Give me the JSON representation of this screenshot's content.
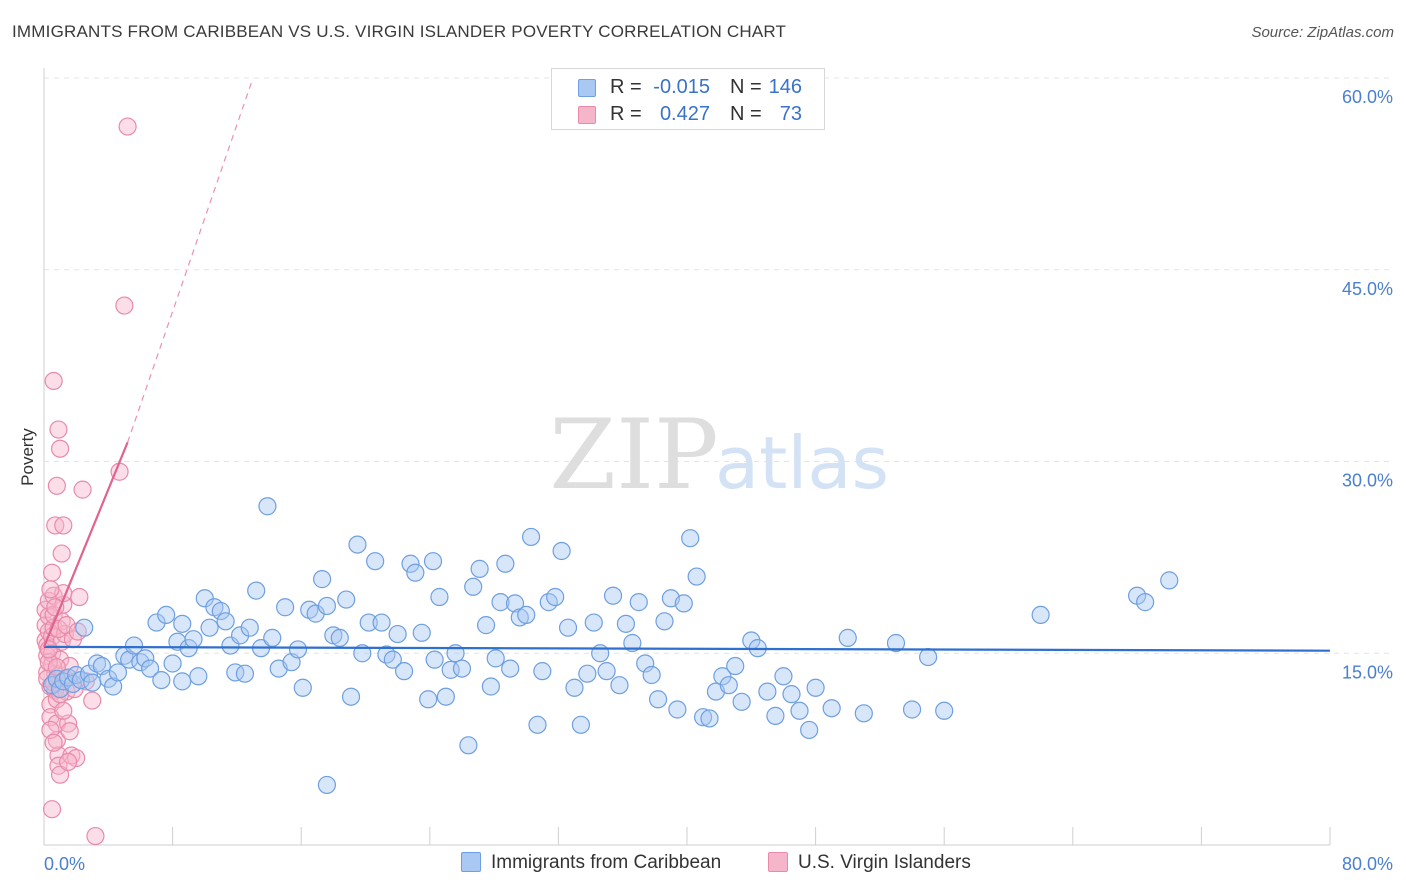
{
  "title": "IMMIGRANTS FROM CARIBBEAN VS U.S. VIRGIN ISLANDER POVERTY CORRELATION CHART",
  "source": "Source: ZipAtlas.com",
  "watermark": {
    "zip": "ZIP",
    "atlas": "atlas"
  },
  "colors": {
    "blue_fill": "#a9c8f2",
    "blue_stroke": "#6e9fe0",
    "blue_line": "#2e6fcf",
    "pink_fill": "#f6b6ca",
    "pink_stroke": "#e98aab",
    "pink_line": "#e0648f",
    "grid": "#e4e4e4",
    "tick_text": "#4a7fd0"
  },
  "legend": {
    "rows": [
      {
        "r_label": "R =",
        "r_value": "-0.015",
        "n_label": "N =",
        "n_value": "146",
        "series": "blue"
      },
      {
        "r_label": "R =",
        "r_value": "0.427",
        "n_label": "N =",
        "n_value": "73",
        "series": "pink"
      }
    ]
  },
  "bottom_legend": [
    {
      "label": "Immigrants from Caribbean",
      "series": "blue"
    },
    {
      "label": "U.S. Virgin Islanders",
      "series": "pink"
    }
  ],
  "chart_data": {
    "type": "scatter",
    "title": "IMMIGRANTS FROM CARIBBEAN VS U.S. VIRGIN ISLANDER POVERTY CORRELATION CHART",
    "xlabel": "",
    "ylabel": "Poverty",
    "xlim": [
      0,
      80
    ],
    "ylim": [
      0,
      60
    ],
    "x_tick_labels": [
      "0.0%",
      "80.0%"
    ],
    "y_ticks": [
      15,
      30,
      45,
      60
    ],
    "y_tick_labels": [
      "15.0%",
      "30.0%",
      "45.0%",
      "60.0%"
    ],
    "grid": true,
    "series": [
      {
        "name": "Immigrants from Caribbean",
        "color": "blue",
        "r": -0.015,
        "n": 146,
        "trend": {
          "x": [
            0,
            80
          ],
          "y": [
            15.5,
            15.2
          ]
        },
        "points": [
          [
            0.5,
            12.5
          ],
          [
            0.8,
            13.0
          ],
          [
            1.0,
            12.2
          ],
          [
            1.2,
            12.8
          ],
          [
            1.5,
            13.1
          ],
          [
            1.8,
            12.6
          ],
          [
            2.0,
            13.3
          ],
          [
            2.3,
            12.9
          ],
          [
            2.5,
            17.0
          ],
          [
            2.8,
            13.4
          ],
          [
            3.0,
            12.7
          ],
          [
            3.3,
            14.2
          ],
          [
            3.6,
            14.0
          ],
          [
            4.0,
            13.0
          ],
          [
            4.3,
            12.4
          ],
          [
            4.6,
            13.5
          ],
          [
            5.0,
            14.8
          ],
          [
            5.3,
            14.5
          ],
          [
            5.6,
            15.6
          ],
          [
            6.0,
            14.3
          ],
          [
            6.3,
            14.6
          ],
          [
            6.6,
            13.8
          ],
          [
            7.0,
            17.4
          ],
          [
            7.3,
            12.9
          ],
          [
            7.6,
            18.0
          ],
          [
            8.0,
            14.2
          ],
          [
            8.3,
            15.9
          ],
          [
            8.6,
            17.3
          ],
          [
            9.0,
            15.4
          ],
          [
            9.3,
            16.1
          ],
          [
            9.6,
            13.2
          ],
          [
            10.0,
            19.3
          ],
          [
            10.3,
            17.0
          ],
          [
            10.6,
            18.6
          ],
          [
            11.0,
            18.3
          ],
          [
            11.3,
            17.5
          ],
          [
            11.6,
            15.6
          ],
          [
            11.9,
            13.5
          ],
          [
            12.2,
            16.4
          ],
          [
            12.5,
            13.4
          ],
          [
            12.8,
            17.0
          ],
          [
            13.2,
            19.9
          ],
          [
            13.5,
            15.4
          ],
          [
            13.9,
            26.5
          ],
          [
            14.2,
            16.2
          ],
          [
            14.6,
            13.8
          ],
          [
            15.0,
            18.6
          ],
          [
            15.4,
            14.3
          ],
          [
            15.8,
            15.3
          ],
          [
            16.1,
            12.3
          ],
          [
            16.5,
            18.4
          ],
          [
            16.9,
            18.1
          ],
          [
            17.3,
            20.8
          ],
          [
            17.6,
            18.7
          ],
          [
            18.0,
            16.4
          ],
          [
            18.4,
            16.2
          ],
          [
            18.8,
            19.2
          ],
          [
            19.1,
            11.6
          ],
          [
            19.5,
            23.5
          ],
          [
            19.8,
            15.0
          ],
          [
            20.2,
            17.4
          ],
          [
            20.6,
            22.2
          ],
          [
            21.0,
            17.4
          ],
          [
            21.3,
            14.9
          ],
          [
            21.7,
            14.5
          ],
          [
            22.0,
            16.5
          ],
          [
            22.4,
            13.6
          ],
          [
            22.8,
            22.0
          ],
          [
            23.1,
            21.3
          ],
          [
            23.5,
            16.6
          ],
          [
            23.9,
            11.4
          ],
          [
            24.2,
            22.2
          ],
          [
            24.6,
            19.4
          ],
          [
            25.0,
            11.6
          ],
          [
            25.3,
            13.7
          ],
          [
            25.6,
            15.0
          ],
          [
            26.0,
            13.8
          ],
          [
            26.4,
            7.8
          ],
          [
            26.7,
            20.2
          ],
          [
            27.1,
            21.6
          ],
          [
            27.5,
            17.2
          ],
          [
            27.8,
            12.4
          ],
          [
            28.1,
            14.6
          ],
          [
            28.4,
            19.0
          ],
          [
            28.7,
            22.0
          ],
          [
            29.0,
            13.8
          ],
          [
            29.3,
            18.9
          ],
          [
            29.6,
            17.8
          ],
          [
            30.0,
            18.0
          ],
          [
            30.3,
            24.1
          ],
          [
            30.7,
            9.4
          ],
          [
            31.0,
            13.6
          ],
          [
            31.4,
            19.0
          ],
          [
            31.8,
            19.4
          ],
          [
            32.2,
            23.0
          ],
          [
            32.6,
            17.0
          ],
          [
            33.0,
            12.3
          ],
          [
            33.4,
            9.4
          ],
          [
            33.8,
            13.4
          ],
          [
            34.2,
            17.4
          ],
          [
            34.6,
            15.0
          ],
          [
            35.0,
            13.6
          ],
          [
            35.4,
            19.5
          ],
          [
            35.8,
            12.5
          ],
          [
            36.2,
            17.3
          ],
          [
            36.6,
            15.8
          ],
          [
            37.0,
            19.0
          ],
          [
            37.4,
            14.2
          ],
          [
            37.8,
            13.3
          ],
          [
            38.2,
            11.4
          ],
          [
            38.6,
            17.5
          ],
          [
            39.0,
            19.3
          ],
          [
            39.4,
            10.6
          ],
          [
            39.8,
            18.9
          ],
          [
            40.2,
            24.0
          ],
          [
            40.6,
            21.0
          ],
          [
            41.0,
            10.0
          ],
          [
            41.4,
            9.9
          ],
          [
            41.8,
            12.0
          ],
          [
            42.2,
            13.2
          ],
          [
            42.6,
            12.5
          ],
          [
            43.0,
            14.0
          ],
          [
            43.4,
            11.2
          ],
          [
            44.0,
            16.0
          ],
          [
            44.4,
            15.4
          ],
          [
            45.0,
            12.0
          ],
          [
            45.5,
            10.1
          ],
          [
            46.0,
            13.2
          ],
          [
            46.5,
            11.8
          ],
          [
            47.0,
            10.5
          ],
          [
            47.6,
            9.0
          ],
          [
            48.0,
            12.3
          ],
          [
            49.0,
            10.7
          ],
          [
            50.0,
            16.2
          ],
          [
            51.0,
            10.3
          ],
          [
            53.0,
            15.8
          ],
          [
            54.0,
            10.6
          ],
          [
            55.0,
            14.7
          ],
          [
            56.0,
            10.5
          ],
          [
            62.0,
            18.0
          ],
          [
            68.0,
            19.5
          ],
          [
            68.5,
            19.0
          ],
          [
            70.0,
            20.7
          ],
          [
            17.6,
            4.7
          ],
          [
            8.6,
            12.8
          ],
          [
            24.3,
            14.5
          ]
        ]
      },
      {
        "name": "U.S. Virgin Islanders",
        "color": "pink",
        "r": 0.427,
        "n": 73,
        "trend": {
          "x": [
            0,
            5.2
          ],
          "y": [
            15.5,
            31.5
          ]
        },
        "trend_extension": {
          "x": [
            5.2,
            13.0
          ],
          "y": [
            31.5,
            60.0
          ]
        },
        "points": [
          [
            0.1,
            16.0
          ],
          [
            0.1,
            17.2
          ],
          [
            0.1,
            18.4
          ],
          [
            0.2,
            15.6
          ],
          [
            0.2,
            14.8
          ],
          [
            0.2,
            13.5
          ],
          [
            0.3,
            16.7
          ],
          [
            0.3,
            17.9
          ],
          [
            0.3,
            19.1
          ],
          [
            0.4,
            12.4
          ],
          [
            0.4,
            11.0
          ],
          [
            0.4,
            10.0
          ],
          [
            0.5,
            14.1
          ],
          [
            0.5,
            15.0
          ],
          [
            0.5,
            16.3
          ],
          [
            0.6,
            17.0
          ],
          [
            0.6,
            18.0
          ],
          [
            0.6,
            19.5
          ],
          [
            0.7,
            13.4
          ],
          [
            0.7,
            12.1
          ],
          [
            0.8,
            11.4
          ],
          [
            0.8,
            9.5
          ],
          [
            0.8,
            8.2
          ],
          [
            0.9,
            7.0
          ],
          [
            0.9,
            6.2
          ],
          [
            1.0,
            5.5
          ],
          [
            1.0,
            14.5
          ],
          [
            1.1,
            15.9
          ],
          [
            1.1,
            17.5
          ],
          [
            1.2,
            18.8
          ],
          [
            1.2,
            19.7
          ],
          [
            1.3,
            16.5
          ],
          [
            1.3,
            13.0
          ],
          [
            1.4,
            12.0
          ],
          [
            1.5,
            9.5
          ],
          [
            1.6,
            8.9
          ],
          [
            1.7,
            7.0
          ],
          [
            2.0,
            6.8
          ],
          [
            2.2,
            19.4
          ],
          [
            2.4,
            27.8
          ],
          [
            2.6,
            12.8
          ],
          [
            3.0,
            11.3
          ],
          [
            4.7,
            29.2
          ],
          [
            5.0,
            42.2
          ],
          [
            5.2,
            56.2
          ],
          [
            0.6,
            36.3
          ],
          [
            1.0,
            31.0
          ],
          [
            0.7,
            25.0
          ],
          [
            1.1,
            22.8
          ],
          [
            0.5,
            21.3
          ],
          [
            0.4,
            20.0
          ],
          [
            0.8,
            28.1
          ],
          [
            0.9,
            32.5
          ],
          [
            1.2,
            25.0
          ],
          [
            0.3,
            14.3
          ],
          [
            0.2,
            13.0
          ],
          [
            0.6,
            12.7
          ],
          [
            1.0,
            11.8
          ],
          [
            0.5,
            2.8
          ],
          [
            3.2,
            0.7
          ],
          [
            0.9,
            16.9
          ],
          [
            1.4,
            17.2
          ],
          [
            0.7,
            18.6
          ],
          [
            0.3,
            15.3
          ],
          [
            1.6,
            14.0
          ],
          [
            1.8,
            16.1
          ],
          [
            0.4,
            9.0
          ],
          [
            1.2,
            10.5
          ],
          [
            0.6,
            8.0
          ],
          [
            1.5,
            6.5
          ],
          [
            0.8,
            13.9
          ],
          [
            1.9,
            12.2
          ],
          [
            2.1,
            16.7
          ]
        ]
      }
    ]
  }
}
